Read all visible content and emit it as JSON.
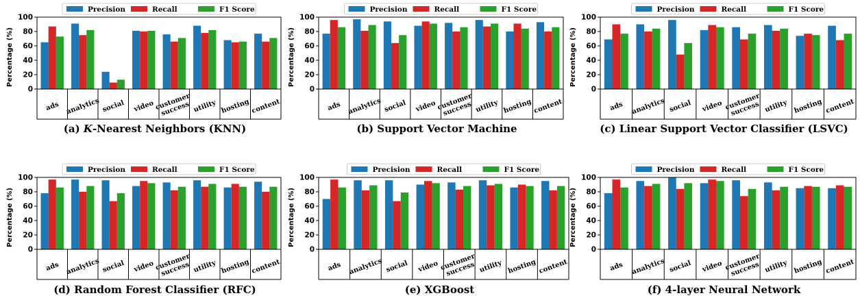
{
  "legend": {
    "precision": "Precision",
    "recall": "Recall",
    "f1": "F1 Score"
  },
  "colors": {
    "precision": "#1f77b4",
    "recall": "#d62728",
    "f1": "#2ca02c"
  },
  "chart_data": [
    {
      "type": "bar",
      "caption": "(a) K-Nearest Neighbors (KNN)",
      "caption_prefix": "(a) ",
      "caption_italic": "K",
      "caption_rest": "-Nearest Neighbors (KNN)",
      "ylabel": "Percentage (%)",
      "ylim": [
        0,
        100
      ],
      "yticks": [
        "0",
        "20",
        "40",
        "60",
        "80",
        "100"
      ],
      "categories": [
        "ads",
        "analytics",
        "social",
        "video",
        "customer success",
        "utility",
        "hosting",
        "content"
      ],
      "series": [
        {
          "name": "Precision",
          "values": [
            65,
            91,
            24,
            81,
            76,
            88,
            68,
            77
          ]
        },
        {
          "name": "Recall",
          "values": [
            87,
            75,
            9,
            80,
            66,
            78,
            65,
            66
          ]
        },
        {
          "name": "F1 Score",
          "values": [
            73,
            82,
            13,
            81,
            71,
            82,
            66,
            71
          ]
        }
      ]
    },
    {
      "type": "bar",
      "caption": "(b) Support Vector Machine",
      "caption_prefix": "(b) Support Vector Machine",
      "caption_italic": "",
      "caption_rest": "",
      "ylabel": "Percentage (%)",
      "ylim": [
        0,
        100
      ],
      "yticks": [
        "0",
        "20",
        "40",
        "60",
        "80",
        "100"
      ],
      "categories": [
        "ads",
        "analytics",
        "social",
        "video",
        "customer success",
        "utility",
        "hosting",
        "content"
      ],
      "series": [
        {
          "name": "Precision",
          "values": [
            77,
            97,
            94,
            88,
            92,
            96,
            80,
            93
          ]
        },
        {
          "name": "Recall",
          "values": [
            96,
            81,
            64,
            94,
            80,
            87,
            91,
            80
          ]
        },
        {
          "name": "F1 Score",
          "values": [
            86,
            89,
            75,
            91,
            86,
            91,
            84,
            86
          ]
        }
      ]
    },
    {
      "type": "bar",
      "caption": "(c) Linear Support Vector Classifier (LSVC)",
      "caption_prefix": "(c) Linear Support Vector Classifier (LSVC)",
      "caption_italic": "",
      "caption_rest": "",
      "ylabel": "Percentage (%)",
      "ylim": [
        0,
        100
      ],
      "yticks": [
        "0",
        "20",
        "40",
        "60",
        "80",
        "100"
      ],
      "categories": [
        "ads",
        "analytics",
        "social",
        "video",
        "customer success",
        "utility",
        "hosting",
        "content"
      ],
      "series": [
        {
          "name": "Precision",
          "values": [
            69,
            90,
            96,
            82,
            86,
            89,
            74,
            88
          ]
        },
        {
          "name": "Recall",
          "values": [
            90,
            80,
            48,
            89,
            69,
            81,
            77,
            68
          ]
        },
        {
          "name": "F1 Score",
          "values": [
            77,
            84,
            64,
            86,
            77,
            84,
            75,
            77
          ]
        }
      ]
    },
    {
      "type": "bar",
      "caption": "(d) Random Forest Classifier (RFC)",
      "caption_prefix": "(d) Random Forest Classifier (RFC)",
      "caption_italic": "",
      "caption_rest": "",
      "ylabel": "Percentage (%)",
      "ylim": [
        0,
        100
      ],
      "yticks": [
        "0",
        "20",
        "40",
        "60",
        "80",
        "100"
      ],
      "categories": [
        "ads",
        "analytics",
        "social",
        "video",
        "customer success",
        "utility",
        "hosting",
        "content"
      ],
      "series": [
        {
          "name": "Precision",
          "values": [
            78,
            97,
            96,
            88,
            93,
            96,
            86,
            94
          ]
        },
        {
          "name": "Recall",
          "values": [
            97,
            80,
            67,
            95,
            82,
            87,
            91,
            80
          ]
        },
        {
          "name": "F1 Score",
          "values": [
            86,
            88,
            78,
            92,
            87,
            91,
            87,
            87
          ]
        }
      ]
    },
    {
      "type": "bar",
      "caption": "(e) XGBoost",
      "caption_prefix": "(e) XGBoost",
      "caption_italic": "",
      "caption_rest": "",
      "ylabel": "Percentage (%)",
      "ylim": [
        0,
        100
      ],
      "yticks": [
        "0",
        "20",
        "40",
        "60",
        "80",
        "100"
      ],
      "categories": [
        "ads",
        "analytics",
        "social",
        "video",
        "customer success",
        "utility",
        "hosting",
        "content"
      ],
      "series": [
        {
          "name": "Precision",
          "values": [
            70,
            96,
            96,
            90,
            93,
            96,
            86,
            95
          ]
        },
        {
          "name": "Recall",
          "values": [
            97,
            82,
            67,
            95,
            83,
            89,
            90,
            82
          ]
        },
        {
          "name": "F1 Score",
          "values": [
            86,
            89,
            79,
            92,
            88,
            91,
            88,
            88
          ]
        }
      ]
    },
    {
      "type": "bar",
      "caption": "(f) 4-layer Neural Network",
      "caption_prefix": "(f) 4-layer Neural Network",
      "caption_italic": "",
      "caption_rest": "",
      "ylabel": "Percentage (%)",
      "ylim": [
        0,
        100
      ],
      "yticks": [
        "0",
        "20",
        "40",
        "60",
        "80",
        "100"
      ],
      "categories": [
        "ads",
        "analytics",
        "social",
        "video",
        "customer success",
        "utility",
        "hosting",
        "content"
      ],
      "series": [
        {
          "name": "Precision",
          "values": [
            78,
            95,
            100,
            92,
            96,
            93,
            85,
            85
          ]
        },
        {
          "name": "Recall",
          "values": [
            97,
            88,
            84,
            97,
            74,
            82,
            88,
            89
          ]
        },
        {
          "name": "F1 Score",
          "values": [
            86,
            91,
            92,
            95,
            84,
            87,
            87,
            87
          ]
        }
      ]
    }
  ]
}
